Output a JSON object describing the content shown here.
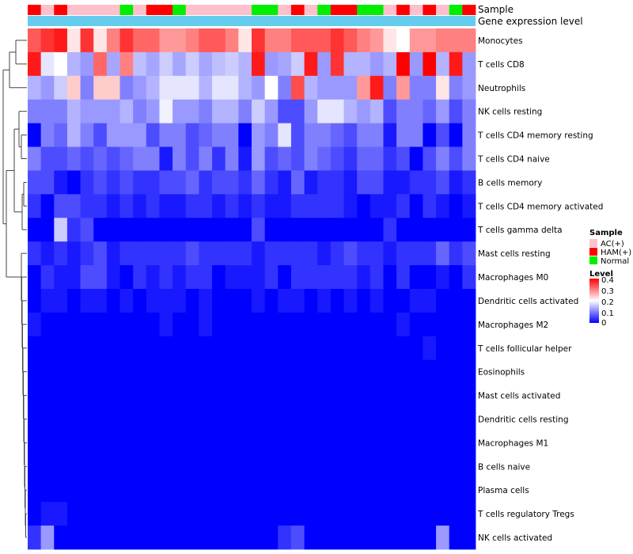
{
  "chart_data": {
    "type": "heatmap",
    "title": "",
    "annotation_tracks": [
      "Sample",
      "Gene expression level"
    ],
    "sample_groups": [
      "AC(+)",
      "HAM(+)",
      "Normal"
    ],
    "sample_annotation": [
      "HAM(+)",
      "AC(+)",
      "HAM(+)",
      "AC(+)",
      "AC(+)",
      "AC(+)",
      "AC(+)",
      "Normal",
      "AC(+)",
      "HAM(+)",
      "HAM(+)",
      "Normal",
      "AC(+)",
      "AC(+)",
      "AC(+)",
      "AC(+)",
      "AC(+)",
      "Normal",
      "Normal",
      "AC(+)",
      "HAM(+)",
      "AC(+)",
      "Normal",
      "HAM(+)",
      "HAM(+)",
      "Normal",
      "Normal",
      "AC(+)",
      "HAM(+)",
      "AC(+)",
      "HAM(+)",
      "AC(+)",
      "Normal",
      "HAM(+)"
    ],
    "rows": [
      "Monocytes",
      "T cells CD8",
      "Neutrophils",
      "NK cells resting",
      "T cells CD4 memory resting",
      "T cells CD4 naive",
      "B cells memory",
      "T cells CD4 memory activated",
      "T cells gamma delta",
      "Mast cells resting",
      "Macrophages M0",
      "Dendritic cells activated",
      "Macrophages M2",
      "T cells follicular helper",
      "Eosinophils",
      "Mast cells activated",
      "Dendritic cells resting",
      "Macrophages M1",
      "B cells naive",
      "Plasma cells",
      "T cells regulatory  Tregs",
      "NK cells activated"
    ],
    "values": [
      [
        0.33,
        0.36,
        0.38,
        0.22,
        0.36,
        0.22,
        0.3,
        0.36,
        0.32,
        0.32,
        0.28,
        0.28,
        0.3,
        0.33,
        0.33,
        0.3,
        0.22,
        0.36,
        0.3,
        0.3,
        0.33,
        0.33,
        0.33,
        0.36,
        0.33,
        0.3,
        0.28,
        0.22,
        0.2,
        0.28,
        0.28,
        0.3,
        0.3,
        0.3
      ],
      [
        0.38,
        0.18,
        0.2,
        0.14,
        0.12,
        0.32,
        0.13,
        0.3,
        0.15,
        0.13,
        0.16,
        0.13,
        0.16,
        0.13,
        0.15,
        0.16,
        0.14,
        0.38,
        0.12,
        0.13,
        0.16,
        0.38,
        0.12,
        0.36,
        0.14,
        0.14,
        0.12,
        0.14,
        0.4,
        0.12,
        0.4,
        0.14,
        0.38,
        0.12
      ],
      [
        0.14,
        0.12,
        0.16,
        0.24,
        0.1,
        0.24,
        0.24,
        0.1,
        0.12,
        0.14,
        0.18,
        0.18,
        0.18,
        0.14,
        0.18,
        0.18,
        0.14,
        0.12,
        0.2,
        0.1,
        0.34,
        0.14,
        0.12,
        0.12,
        0.12,
        0.28,
        0.38,
        0.1,
        0.28,
        0.1,
        0.1,
        0.22,
        0.1,
        0.12
      ],
      [
        0.1,
        0.1,
        0.1,
        0.14,
        0.12,
        0.12,
        0.12,
        0.14,
        0.1,
        0.12,
        0.19,
        0.12,
        0.12,
        0.1,
        0.14,
        0.14,
        0.1,
        0.16,
        0.12,
        0.06,
        0.06,
        0.12,
        0.18,
        0.18,
        0.14,
        0.12,
        0.14,
        0.06,
        0.1,
        0.1,
        0.08,
        0.12,
        0.06,
        0.1
      ],
      [
        0.0,
        0.1,
        0.08,
        0.14,
        0.1,
        0.06,
        0.12,
        0.12,
        0.12,
        0.06,
        0.1,
        0.1,
        0.06,
        0.08,
        0.1,
        0.1,
        0.0,
        0.12,
        0.1,
        0.18,
        0.06,
        0.1,
        0.1,
        0.08,
        0.06,
        0.1,
        0.1,
        0.02,
        0.1,
        0.1,
        0.0,
        0.06,
        0.0,
        0.1
      ],
      [
        0.1,
        0.06,
        0.06,
        0.08,
        0.06,
        0.08,
        0.06,
        0.08,
        0.1,
        0.1,
        0.02,
        0.1,
        0.06,
        0.1,
        0.04,
        0.1,
        0.02,
        0.12,
        0.06,
        0.08,
        0.06,
        0.1,
        0.08,
        0.06,
        0.04,
        0.08,
        0.08,
        0.04,
        0.06,
        0.0,
        0.06,
        0.1,
        0.06,
        0.1
      ],
      [
        0.06,
        0.06,
        0.02,
        0.0,
        0.04,
        0.06,
        0.04,
        0.06,
        0.04,
        0.04,
        0.06,
        0.06,
        0.08,
        0.04,
        0.06,
        0.06,
        0.04,
        0.08,
        0.04,
        0.02,
        0.08,
        0.02,
        0.04,
        0.04,
        0.02,
        0.06,
        0.06,
        0.02,
        0.02,
        0.04,
        0.04,
        0.06,
        0.02,
        0.04
      ],
      [
        0.04,
        0.0,
        0.06,
        0.06,
        0.04,
        0.04,
        0.02,
        0.04,
        0.02,
        0.04,
        0.02,
        0.02,
        0.04,
        0.04,
        0.02,
        0.04,
        0.02,
        0.04,
        0.02,
        0.02,
        0.04,
        0.04,
        0.04,
        0.04,
        0.02,
        0.0,
        0.02,
        0.02,
        0.04,
        0.0,
        0.04,
        0.02,
        0.0,
        0.02
      ],
      [
        0.0,
        0.0,
        0.16,
        0.04,
        0.06,
        0.0,
        0.0,
        0.0,
        0.0,
        0.0,
        0.0,
        0.0,
        0.0,
        0.0,
        0.0,
        0.0,
        0.0,
        0.06,
        0.0,
        0.0,
        0.0,
        0.0,
        0.0,
        0.0,
        0.0,
        0.0,
        0.0,
        0.04,
        0.0,
        0.0,
        0.0,
        0.0,
        0.0,
        0.0
      ],
      [
        0.04,
        0.02,
        0.04,
        0.02,
        0.04,
        0.06,
        0.02,
        0.04,
        0.04,
        0.04,
        0.04,
        0.04,
        0.06,
        0.04,
        0.04,
        0.04,
        0.04,
        0.02,
        0.04,
        0.04,
        0.04,
        0.04,
        0.02,
        0.04,
        0.06,
        0.04,
        0.04,
        0.02,
        0.04,
        0.04,
        0.04,
        0.08,
        0.04,
        0.06
      ],
      [
        0.0,
        0.04,
        0.02,
        0.02,
        0.06,
        0.06,
        0.02,
        0.0,
        0.04,
        0.02,
        0.04,
        0.02,
        0.04,
        0.04,
        0.0,
        0.02,
        0.02,
        0.02,
        0.04,
        0.0,
        0.04,
        0.04,
        0.04,
        0.04,
        0.04,
        0.02,
        0.04,
        0.0,
        0.04,
        0.0,
        0.0,
        0.02,
        0.0,
        0.04
      ],
      [
        0.0,
        0.02,
        0.02,
        0.0,
        0.02,
        0.02,
        0.0,
        0.02,
        0.0,
        0.02,
        0.02,
        0.02,
        0.0,
        0.02,
        0.0,
        0.0,
        0.0,
        0.02,
        0.0,
        0.02,
        0.02,
        0.0,
        0.02,
        0.0,
        0.02,
        0.0,
        0.02,
        0.0,
        0.0,
        0.02,
        0.02,
        0.0,
        0.0,
        0.0
      ],
      [
        0.02,
        0.0,
        0.0,
        0.0,
        0.0,
        0.0,
        0.0,
        0.0,
        0.0,
        0.0,
        0.02,
        0.0,
        0.0,
        0.02,
        0.0,
        0.0,
        0.0,
        0.0,
        0.0,
        0.0,
        0.0,
        0.0,
        0.0,
        0.0,
        0.0,
        0.0,
        0.0,
        0.0,
        0.02,
        0.0,
        0.0,
        0.0,
        0.0,
        0.0
      ],
      [
        0.0,
        0.0,
        0.0,
        0.0,
        0.0,
        0.0,
        0.0,
        0.0,
        0.0,
        0.0,
        0.0,
        0.0,
        0.0,
        0.0,
        0.0,
        0.0,
        0.0,
        0.0,
        0.0,
        0.0,
        0.0,
        0.0,
        0.0,
        0.0,
        0.0,
        0.0,
        0.0,
        0.0,
        0.0,
        0.0,
        0.02,
        0.0,
        0.0,
        0.0
      ],
      [
        0.0,
        0.0,
        0.0,
        0.0,
        0.0,
        0.0,
        0.0,
        0.0,
        0.0,
        0.0,
        0.0,
        0.0,
        0.0,
        0.0,
        0.0,
        0.0,
        0.0,
        0.0,
        0.0,
        0.0,
        0.0,
        0.0,
        0.0,
        0.0,
        0.0,
        0.0,
        0.0,
        0.0,
        0.0,
        0.0,
        0.0,
        0.0,
        0.0,
        0.0
      ],
      [
        0.0,
        0.0,
        0.0,
        0.0,
        0.0,
        0.0,
        0.0,
        0.0,
        0.0,
        0.0,
        0.0,
        0.0,
        0.0,
        0.0,
        0.0,
        0.0,
        0.0,
        0.0,
        0.0,
        0.0,
        0.0,
        0.0,
        0.0,
        0.0,
        0.0,
        0.0,
        0.0,
        0.0,
        0.0,
        0.0,
        0.0,
        0.0,
        0.0,
        0.0
      ],
      [
        0.0,
        0.0,
        0.0,
        0.0,
        0.0,
        0.0,
        0.0,
        0.0,
        0.0,
        0.0,
        0.0,
        0.0,
        0.0,
        0.0,
        0.0,
        0.0,
        0.0,
        0.0,
        0.0,
        0.0,
        0.0,
        0.0,
        0.0,
        0.0,
        0.0,
        0.0,
        0.0,
        0.0,
        0.0,
        0.0,
        0.0,
        0.0,
        0.0,
        0.0
      ],
      [
        0.0,
        0.0,
        0.0,
        0.0,
        0.0,
        0.0,
        0.0,
        0.0,
        0.0,
        0.0,
        0.0,
        0.0,
        0.0,
        0.0,
        0.0,
        0.0,
        0.0,
        0.0,
        0.0,
        0.0,
        0.0,
        0.0,
        0.0,
        0.0,
        0.0,
        0.0,
        0.0,
        0.0,
        0.0,
        0.0,
        0.0,
        0.0,
        0.0,
        0.0
      ],
      [
        0.0,
        0.0,
        0.0,
        0.0,
        0.0,
        0.0,
        0.0,
        0.0,
        0.0,
        0.0,
        0.0,
        0.0,
        0.0,
        0.0,
        0.0,
        0.0,
        0.0,
        0.0,
        0.0,
        0.0,
        0.0,
        0.0,
        0.0,
        0.0,
        0.0,
        0.0,
        0.0,
        0.0,
        0.0,
        0.0,
        0.0,
        0.0,
        0.0,
        0.0
      ],
      [
        0.0,
        0.0,
        0.0,
        0.0,
        0.0,
        0.0,
        0.0,
        0.0,
        0.0,
        0.0,
        0.0,
        0.0,
        0.0,
        0.0,
        0.0,
        0.0,
        0.0,
        0.0,
        0.0,
        0.0,
        0.0,
        0.0,
        0.0,
        0.0,
        0.0,
        0.0,
        0.0,
        0.0,
        0.0,
        0.0,
        0.0,
        0.0,
        0.0,
        0.0
      ],
      [
        0.0,
        0.02,
        0.02,
        0.0,
        0.0,
        0.0,
        0.0,
        0.0,
        0.0,
        0.0,
        0.0,
        0.0,
        0.0,
        0.0,
        0.0,
        0.0,
        0.0,
        0.0,
        0.0,
        0.0,
        0.0,
        0.0,
        0.0,
        0.0,
        0.0,
        0.0,
        0.0,
        0.0,
        0.0,
        0.0,
        0.0,
        0.0,
        0.0,
        0.0
      ],
      [
        0.04,
        0.12,
        0.0,
        0.0,
        0.0,
        0.0,
        0.0,
        0.0,
        0.0,
        0.0,
        0.0,
        0.0,
        0.0,
        0.0,
        0.0,
        0.0,
        0.0,
        0.0,
        0.0,
        0.04,
        0.06,
        0.0,
        0.0,
        0.0,
        0.0,
        0.0,
        0.0,
        0.0,
        0.0,
        0.0,
        0.0,
        0.12,
        0.0,
        0.0
      ]
    ],
    "legend": {
      "sample_title": "Sample",
      "level_title": "Level",
      "level_ticks": [
        "0.4",
        "0.3",
        "0.2",
        "0.1",
        "0"
      ],
      "range": [
        0,
        0.4
      ]
    },
    "colors": {
      "low": "#0000ff",
      "mid": "#ffffff",
      "high": "#ff0000",
      "AC(+)": "#ffc0cb",
      "HAM(+)": "#ff0000",
      "Normal": "#00ee00",
      "expression_track": "#66ccee"
    }
  }
}
